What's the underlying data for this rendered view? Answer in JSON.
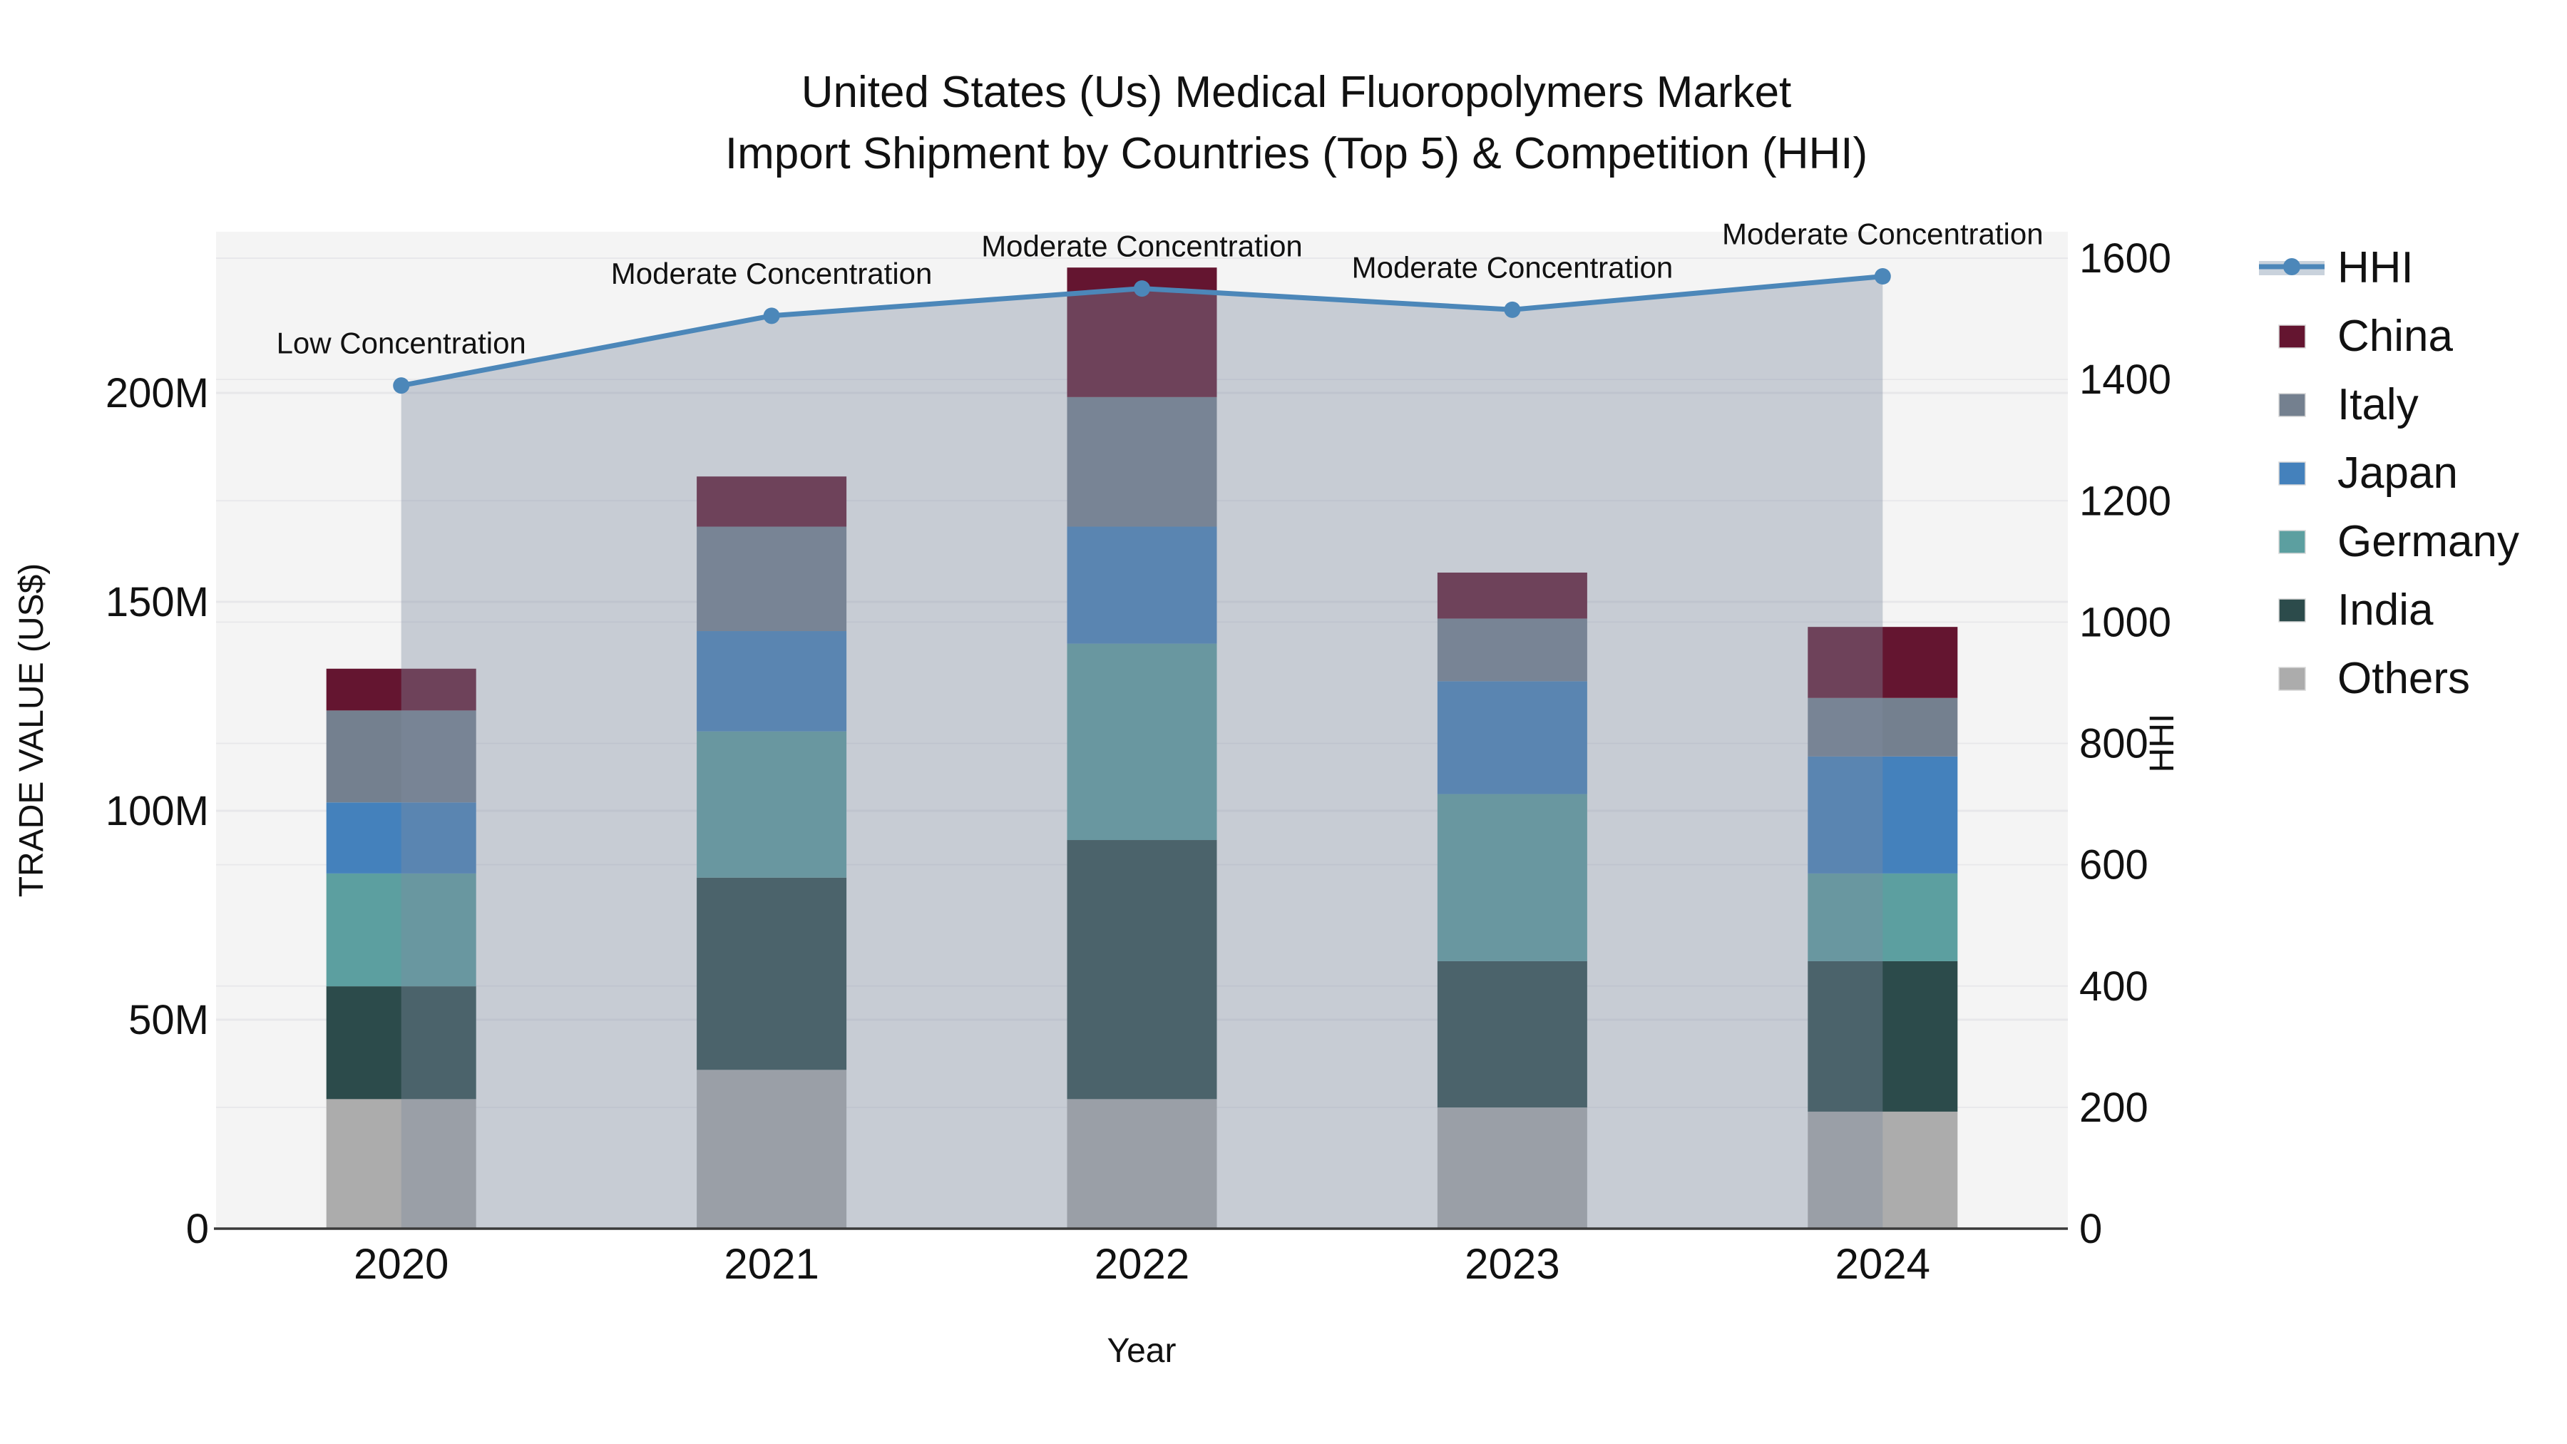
{
  "title": {
    "line1": "United States (Us) Medical Fluoropolymers Market",
    "line2": "Import Shipment by Countries (Top 5) & Competition (HHI)"
  },
  "chart_data": {
    "type": "stacked-bar-line-combo",
    "x_label": "Year",
    "categories": [
      "2020",
      "2021",
      "2022",
      "2023",
      "2024"
    ],
    "y_left": {
      "label": "TRADE VALUE (US$)",
      "ticks": [
        "0",
        "50M",
        "100M",
        "150M",
        "200M"
      ],
      "tick_values_millions": [
        0,
        50,
        100,
        150,
        200
      ]
    },
    "y_right": {
      "label": "HHI",
      "ticks": [
        "0",
        "200",
        "400",
        "600",
        "800",
        "1000",
        "1200",
        "1400",
        "1600"
      ],
      "tick_values": [
        0,
        200,
        400,
        600,
        800,
        1000,
        1200,
        1400,
        1600
      ]
    },
    "series": [
      {
        "name": "Others",
        "color": "#ACACAC",
        "values_millions": [
          31,
          38,
          31,
          29,
          28
        ]
      },
      {
        "name": "India",
        "color": "#2C4B4B",
        "values_millions": [
          27,
          46,
          62,
          35,
          36
        ]
      },
      {
        "name": "Germany",
        "color": "#5C9FA0",
        "values_millions": [
          27,
          35,
          47,
          40,
          21
        ]
      },
      {
        "name": "Japan",
        "color": "#4481BC",
        "values_millions": [
          17,
          24,
          28,
          27,
          28
        ]
      },
      {
        "name": "Italy",
        "color": "#74808F",
        "values_millions": [
          22,
          25,
          31,
          15,
          14
        ]
      },
      {
        "name": "China",
        "color": "#641530",
        "values_millions": [
          10,
          12,
          31,
          11,
          17
        ]
      }
    ],
    "stack_order_note": "series listed bottom-to-top",
    "hhi_line": {
      "name": "HHI",
      "color": "#4C87B9",
      "area_fill": "rgba(125,140,160,0.38)",
      "values": [
        1390,
        1505,
        1550,
        1515,
        1570
      ],
      "point_annotations": [
        "Low Concentration",
        "Moderate Concentration",
        "Moderate Concentration",
        "Moderate Concentration",
        "Moderate Concentration"
      ]
    },
    "legend": {
      "order": [
        "HHI",
        "China",
        "Italy",
        "Japan",
        "Germany",
        "India",
        "Others"
      ],
      "hhi_band_color": "#C9D2DC"
    },
    "plot_background": "#F4F4F4",
    "grid_color": "#E7E7EA",
    "axis_line_color": "#3A3A3A"
  }
}
